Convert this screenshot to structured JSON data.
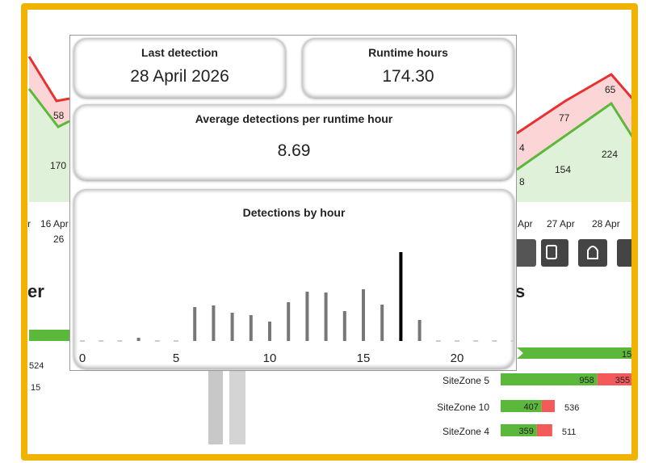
{
  "cards": {
    "last_detection": {
      "label": "Last detection",
      "value": "28 April 2026"
    },
    "runtime": {
      "label": "Runtime hours",
      "value": "174.30"
    },
    "average": {
      "label": "Average detections per runtime hour",
      "value": "8.69"
    }
  },
  "chart_data": {
    "type": "bar",
    "title": "Detections by hour",
    "x": [
      0,
      1,
      2,
      3,
      4,
      5,
      6,
      7,
      8,
      9,
      10,
      11,
      12,
      13,
      14,
      15,
      16,
      17,
      18,
      19,
      20,
      21,
      22,
      23
    ],
    "values": [
      0,
      0,
      0,
      4,
      0,
      0,
      42,
      44,
      35,
      32,
      24,
      48,
      61,
      60,
      37,
      64,
      45,
      110,
      26,
      0,
      0,
      0,
      0,
      0
    ],
    "color": "#777777",
    "highlight_color": "#000000",
    "zero_color": "#cccccc",
    "xlim": [
      0,
      23
    ],
    "xticks": [
      0,
      5,
      10,
      15,
      20
    ]
  },
  "background": {
    "line_labels": [
      "58",
      "170",
      "65",
      "77",
      "224",
      "154",
      "4",
      "8"
    ],
    "date_labels": [
      "r",
      "16 Apr",
      "26",
      "Apr",
      "27 Apr",
      "28 Apr"
    ],
    "left_heading": "er",
    "left_values": [
      "524",
      "15"
    ],
    "right_heading": "s",
    "right_bar_value": "15",
    "site_zones": [
      {
        "name": "SiteZone 5",
        "green": 958,
        "red": 355
      },
      {
        "name": "SiteZone 10",
        "green": 407,
        "total": 536
      },
      {
        "name": "SiteZone 4",
        "green": 359,
        "total": 511
      }
    ]
  }
}
